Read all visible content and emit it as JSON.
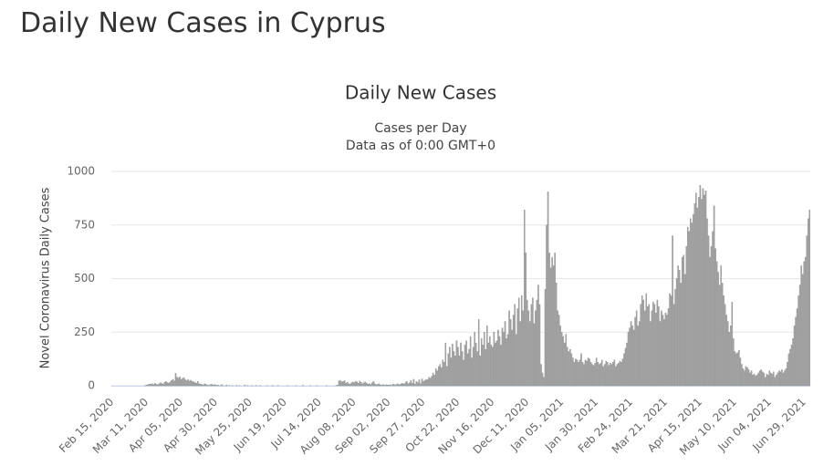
{
  "page_title": "Daily New Cases in Cyprus",
  "chart_data": {
    "type": "bar",
    "title": "Daily New Cases",
    "subtitle": [
      "Cases per Day",
      "Data as of 0:00 GMT+0"
    ],
    "ylabel": "Novel Coronavirus Daily Cases",
    "color": "#a3a3a3",
    "ylim": [
      0,
      1000
    ],
    "yticks": [
      0,
      250,
      500,
      750,
      1000
    ],
    "grid": true,
    "categories": [
      "Feb 15, 2020",
      null,
      null,
      null,
      null,
      null,
      null,
      null,
      null,
      null,
      null,
      null,
      null,
      null,
      null,
      null,
      null,
      null,
      null,
      null,
      null,
      null,
      null,
      null,
      null,
      "Mar 11, 2020",
      null,
      null,
      null,
      null,
      null,
      null,
      null,
      null,
      null,
      null,
      null,
      null,
      null,
      null,
      null,
      null,
      null,
      null,
      null,
      null,
      null,
      null,
      null,
      null,
      "Apr 05, 2020",
      null,
      null,
      null,
      null,
      null,
      null,
      null,
      null,
      null,
      null,
      null,
      null,
      null,
      null,
      null,
      null,
      null,
      null,
      null,
      null,
      null,
      null,
      null,
      null,
      "Apr 30, 2020",
      null,
      null,
      null,
      null,
      null,
      null,
      null,
      null,
      null,
      null,
      null,
      null,
      null,
      null,
      null,
      null,
      null,
      null,
      null,
      null,
      null,
      null,
      null,
      null,
      "May 25, 2020",
      null,
      null,
      null,
      null,
      null,
      null,
      null,
      null,
      null,
      null,
      null,
      null,
      null,
      null,
      null,
      null,
      null,
      null,
      null,
      null,
      null,
      null,
      null,
      null,
      "Jun 19, 2020",
      null,
      null,
      null,
      null,
      null,
      null,
      null,
      null,
      null,
      null,
      null,
      null,
      null,
      null,
      null,
      null,
      null,
      null,
      null,
      null,
      null,
      null,
      null,
      null,
      "Jul 14, 2020",
      null,
      null,
      null,
      null,
      null,
      null,
      null,
      null,
      null,
      null,
      null,
      null,
      null,
      null,
      null,
      null,
      null,
      null,
      null,
      null,
      null,
      null,
      null,
      null,
      "Aug 08, 2020",
      null,
      null,
      null,
      null,
      null,
      null,
      null,
      null,
      null,
      null,
      null,
      null,
      null,
      null,
      null,
      null,
      null,
      null,
      null,
      null,
      null,
      null,
      null,
      null,
      "Sep 02, 2020",
      null,
      null,
      null,
      null,
      null,
      null,
      null,
      null,
      null,
      null,
      null,
      null,
      null,
      null,
      null,
      null,
      null,
      null,
      null,
      null,
      null,
      null,
      null,
      null,
      "Sep 27, 2020",
      null,
      null,
      null,
      null,
      null,
      null,
      null,
      null,
      null,
      null,
      null,
      null,
      null,
      null,
      null,
      null,
      null,
      null,
      null,
      null,
      null,
      null,
      null,
      null,
      "Oct 22, 2020",
      null,
      null,
      null,
      null,
      null,
      null,
      null,
      null,
      null,
      null,
      null,
      null,
      null,
      null,
      null,
      null,
      null,
      null,
      null,
      null,
      null,
      null,
      null,
      null,
      "Nov 16, 2020",
      null,
      null,
      null,
      null,
      null,
      null,
      null,
      null,
      null,
      null,
      null,
      null,
      null,
      null,
      null,
      null,
      null,
      null,
      null,
      null,
      null,
      null,
      null,
      null,
      "Dec 11, 2020",
      null,
      null,
      null,
      null,
      null,
      null,
      null,
      null,
      null,
      null,
      null,
      null,
      null,
      null,
      null,
      null,
      null,
      null,
      null,
      null,
      null,
      null,
      null,
      null,
      "Jan 05, 2021",
      null,
      null,
      null,
      null,
      null,
      null,
      null,
      null,
      null,
      null,
      null,
      null,
      null,
      null,
      null,
      null,
      null,
      null,
      null,
      null,
      null,
      null,
      null,
      null,
      "Jan 30, 2021",
      null,
      null,
      null,
      null,
      null,
      null,
      null,
      null,
      null,
      null,
      null,
      null,
      null,
      null,
      null,
      null,
      null,
      null,
      null,
      null,
      null,
      null,
      null,
      null,
      "Feb 24, 2021",
      null,
      null,
      null,
      null,
      null,
      null,
      null,
      null,
      null,
      null,
      null,
      null,
      null,
      null,
      null,
      null,
      null,
      null,
      null,
      null,
      null,
      null,
      null,
      null,
      "Mar 21, 2021",
      null,
      null,
      null,
      null,
      null,
      null,
      null,
      null,
      null,
      null,
      null,
      null,
      null,
      null,
      null,
      null,
      null,
      null,
      null,
      null,
      null,
      null,
      null,
      null,
      "Apr 15, 2021",
      null,
      null,
      null,
      null,
      null,
      null,
      null,
      null,
      null,
      null,
      null,
      null,
      null,
      null,
      null,
      null,
      null,
      null,
      null,
      null,
      null,
      null,
      null,
      null,
      "May 10, 2021",
      null,
      null,
      null,
      null,
      null,
      null,
      null,
      null,
      null,
      null,
      null,
      null,
      null,
      null,
      null,
      null,
      null,
      null,
      null,
      null,
      null,
      null,
      null,
      null,
      "Jun 04, 2021",
      null,
      null,
      null,
      null,
      null,
      null,
      null,
      null,
      null,
      null,
      null,
      null,
      null,
      null,
      null,
      null,
      null,
      null,
      null,
      null,
      null,
      null,
      null,
      null,
      "Jun 29, 2021",
      null,
      null,
      null,
      null
    ],
    "values": [
      0,
      0,
      0,
      0,
      0,
      0,
      0,
      0,
      0,
      0,
      0,
      0,
      0,
      0,
      0,
      0,
      0,
      0,
      0,
      0,
      0,
      0,
      0,
      0,
      2,
      3,
      5,
      8,
      7,
      10,
      6,
      12,
      8,
      5,
      9,
      14,
      11,
      8,
      16,
      20,
      15,
      12,
      18,
      25,
      30,
      22,
      58,
      40,
      35,
      42,
      30,
      35,
      38,
      28,
      25,
      30,
      22,
      26,
      20,
      18,
      15,
      12,
      20,
      10,
      8,
      6,
      4,
      10,
      6,
      3,
      2,
      5,
      8,
      3,
      6,
      4,
      2,
      3,
      0,
      5,
      2,
      0,
      1,
      3,
      0,
      2,
      0,
      1,
      0,
      0,
      2,
      0,
      1,
      0,
      0,
      0,
      3,
      0,
      1,
      0,
      0,
      1,
      0,
      0,
      2,
      0,
      0,
      1,
      0,
      0,
      0,
      0,
      1,
      0,
      0,
      0,
      2,
      0,
      0,
      0,
      1,
      0,
      0,
      0,
      0,
      0,
      0,
      1,
      0,
      0,
      0,
      0,
      0,
      1,
      0,
      0,
      0,
      0,
      2,
      0,
      0,
      0,
      0,
      1,
      0,
      0,
      0,
      0,
      1,
      0,
      0,
      0,
      0,
      0,
      0,
      1,
      0,
      0,
      0,
      0,
      0,
      0,
      2,
      3,
      22,
      25,
      18,
      20,
      24,
      12,
      16,
      10,
      8,
      14,
      18,
      15,
      20,
      18,
      12,
      22,
      16,
      10,
      14,
      18,
      12,
      8,
      10,
      6,
      14,
      20,
      9,
      5,
      7,
      10,
      4,
      3,
      6,
      2,
      5,
      4,
      3,
      5,
      2,
      8,
      6,
      4,
      10,
      7,
      5,
      9,
      12,
      8,
      15,
      20,
      10,
      14,
      25,
      12,
      30,
      8,
      20,
      15,
      28,
      10,
      32,
      20,
      25,
      30,
      28,
      40,
      35,
      45,
      60,
      50,
      80,
      70,
      90,
      100,
      85,
      120,
      110,
      200,
      90,
      150,
      180,
      130,
      195,
      160,
      140,
      210,
      180,
      140,
      200,
      160,
      120,
      190,
      210,
      150,
      170,
      230,
      130,
      180,
      250,
      200,
      160,
      310,
      140,
      220,
      190,
      250,
      170,
      280,
      200,
      230,
      190,
      180,
      250,
      200,
      210,
      260,
      230,
      190,
      270,
      250,
      300,
      220,
      240,
      350,
      310,
      260,
      330,
      380,
      240,
      360,
      410,
      300,
      420,
      350,
      820,
      620,
      400,
      350,
      300,
      380,
      410,
      290,
      350,
      400,
      470,
      380,
      100,
      60,
      40,
      450,
      750,
      905,
      620,
      550,
      600,
      560,
      620,
      480,
      350,
      330,
      280,
      250,
      230,
      200,
      240,
      180,
      160,
      170,
      150,
      130,
      110,
      125,
      120,
      110,
      120,
      150,
      110,
      100,
      120,
      115,
      130,
      125,
      110,
      100,
      95,
      105,
      130,
      110,
      100,
      105,
      120,
      90,
      100,
      115,
      110,
      95,
      105,
      100,
      110,
      120,
      90,
      100,
      105,
      115,
      110,
      125,
      150,
      175,
      200,
      250,
      270,
      300,
      280,
      260,
      320,
      350,
      280,
      300,
      380,
      420,
      400,
      350,
      430,
      370,
      380,
      300,
      350,
      390,
      380,
      340,
      400,
      370,
      300,
      350,
      330,
      310,
      340,
      330,
      360,
      430,
      420,
      700,
      380,
      450,
      500,
      560,
      540,
      480,
      600,
      610,
      520,
      650,
      740,
      720,
      780,
      760,
      800,
      850,
      900,
      830,
      880,
      935,
      870,
      920,
      890,
      910,
      780,
      700,
      600,
      650,
      720,
      840,
      640,
      580,
      530,
      470,
      560,
      480,
      420,
      380,
      330,
      300,
      250,
      280,
      390,
      220,
      160,
      150,
      155,
      165,
      130,
      100,
      80,
      70,
      90,
      85,
      75,
      60,
      70,
      50,
      55,
      45,
      50,
      60,
      70,
      75,
      65,
      60,
      40,
      55,
      50,
      70,
      60,
      55,
      65,
      40,
      50,
      60,
      70,
      65,
      75,
      60,
      70,
      80,
      110,
      150,
      170,
      190,
      220,
      280,
      320,
      360,
      420,
      470,
      560,
      520,
      580,
      600,
      700,
      780,
      820
    ]
  }
}
